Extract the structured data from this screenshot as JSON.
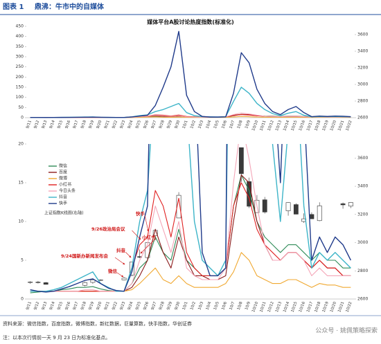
{
  "header": {
    "label": "图表 1",
    "title": "鼎沸：牛市中的自媒体"
  },
  "chart_data": [
    {
      "type": "line",
      "title": "媒体平台A股讨论热度指数(标准化)",
      "categories": [
        "9/11",
        "9/12",
        "9/13",
        "9/14",
        "9/15",
        "9/16",
        "9/17",
        "9/18",
        "9/19",
        "9/20",
        "9/21",
        "9/22",
        "9/23",
        "9/24",
        "9/25",
        "9/26",
        "9/27",
        "9/28",
        "9/29",
        "9/30",
        "10/1",
        "10/2",
        "10/3",
        "10/4",
        "10/5",
        "10/6",
        "10/7",
        "10/8",
        "10/9",
        "10/10",
        "10/11",
        "10/12",
        "10/13",
        "10/14",
        "10/15",
        "10/16",
        "10/17",
        "10/18",
        "10/19",
        "10/20",
        "10/21",
        "10/22"
      ],
      "series": [
        {
          "name": "微信",
          "color": "#2e8b57",
          "values": [
            0.8,
            0.9,
            1,
            1,
            1.2,
            1.3,
            1.5,
            1.5,
            1.6,
            1.3,
            1.1,
            1,
            1,
            2,
            4,
            5,
            8,
            6,
            5,
            9,
            5,
            4,
            3,
            3,
            3,
            4,
            12,
            16,
            14,
            10,
            8,
            7,
            6,
            7,
            7,
            6,
            5,
            6,
            5,
            5,
            4,
            4
          ]
        },
        {
          "name": "百度",
          "color": "#8b1a1a",
          "values": [
            1,
            1,
            1,
            1,
            1,
            1,
            1,
            1,
            1,
            1,
            1,
            1,
            1,
            1.5,
            3,
            5,
            9,
            6,
            4,
            8,
            5,
            3,
            3,
            2.5,
            2.5,
            3,
            10,
            16,
            15,
            10,
            7,
            5,
            5,
            6,
            6,
            5,
            4,
            5,
            4,
            4,
            3,
            3
          ]
        },
        {
          "name": "微博",
          "color": "#f0a830",
          "values": [
            1,
            1,
            1,
            1,
            1,
            1,
            1,
            1,
            1,
            1,
            1,
            1,
            1,
            1.2,
            2,
            3,
            4,
            2.5,
            2,
            3,
            2,
            1.5,
            1.5,
            1.5,
            1.5,
            2,
            3.5,
            6,
            5,
            3,
            2.5,
            2,
            2,
            2.5,
            2.5,
            2,
            1.5,
            2,
            1.8,
            1.8,
            1.5,
            1.5
          ]
        },
        {
          "name": "小红书",
          "color": "#e02020",
          "values": [
            1,
            1,
            1,
            1,
            1,
            1,
            1,
            1,
            1,
            1,
            1,
            1,
            1,
            4,
            7,
            8,
            14,
            12,
            8,
            13,
            6,
            4,
            3,
            3,
            3,
            4,
            12,
            15,
            13,
            9,
            7,
            6,
            5,
            6,
            6,
            5,
            4,
            5,
            4,
            4,
            3,
            3
          ]
        },
        {
          "name": "今日头条",
          "color": "#f4a6b8",
          "values": [
            1,
            1,
            1,
            1,
            1,
            1,
            1,
            1.2,
            1.2,
            1,
            1,
            1,
            1,
            2,
            5,
            7,
            12,
            9,
            6,
            10,
            4,
            3,
            2.5,
            2.5,
            2.5,
            4,
            15,
            23,
            18,
            12,
            7,
            5,
            5,
            6,
            6,
            5,
            3,
            4,
            3,
            3,
            3,
            3
          ]
        },
        {
          "name": "抖音",
          "color": "#3cb4c8",
          "values": [
            1,
            1,
            1,
            1.2,
            1.5,
            2,
            2.5,
            3,
            3.5,
            2,
            1.5,
            1,
            1,
            4,
            10,
            14,
            30,
            40,
            55,
            70,
            25,
            10,
            5,
            4,
            3,
            5,
            80,
            150,
            120,
            70,
            40,
            20,
            10,
            22,
            30,
            12,
            4,
            6,
            5,
            6,
            5,
            4
          ]
        },
        {
          "name": "快手",
          "color": "#1f3a8a",
          "values": [
            1.2,
            1.0,
            0.9,
            1.0,
            1.3,
            1.6,
            2.0,
            2.4,
            2.6,
            2.0,
            1.4,
            1.1,
            1.0,
            3.5,
            8,
            12,
            60,
            150,
            250,
            425,
            110,
            30,
            6,
            3,
            3,
            4,
            120,
            320,
            270,
            140,
            70,
            30,
            15,
            40,
            55,
            25,
            5,
            8,
            6,
            8,
            7,
            5
          ]
        }
      ],
      "ylim": [
        0,
        450
      ],
      "yticks": [
        0,
        50,
        100,
        150,
        200,
        250,
        300,
        350,
        400,
        450
      ],
      "y2lim": [
        2600,
        3700
      ],
      "y2ticks": [
        2600,
        2800,
        3000,
        3200,
        3400,
        3600
      ]
    },
    {
      "type": "line",
      "ylim": [
        0,
        20
      ],
      "yticks": [
        0,
        5,
        10,
        15,
        20
      ],
      "y2lim": [
        2600,
        3700
      ],
      "y2ticks": [
        2600,
        2800,
        3000,
        3200,
        3400,
        3600
      ],
      "legend": "upper left",
      "candles": {
        "name": "上证指数K线图(右轴)",
        "x": [
          "9/11",
          "9/12",
          "9/13",
          "9/18",
          "9/19",
          "9/20",
          "9/23",
          "9/24",
          "9/25",
          "9/26",
          "9/27",
          "9/30",
          "10/8",
          "10/9",
          "10/10",
          "10/11",
          "10/14",
          "10/15",
          "10/16",
          "10/17",
          "10/18",
          "10/21",
          "10/22"
        ],
        "open": [
          2720,
          2720,
          2716,
          2697,
          2718,
          2733,
          2736,
          2770,
          2901,
          2894,
          3049,
          3175,
          3674,
          3433,
          3213,
          3304,
          3226,
          3270,
          3150,
          3200,
          3156,
          3276,
          3259
        ],
        "high": [
          2727,
          2728,
          2721,
          2724,
          2746,
          2740,
          2756,
          2864,
          2952,
          3000,
          3088,
          3358,
          3674,
          3461,
          3338,
          3324,
          3286,
          3279,
          3208,
          3215,
          3286,
          3285,
          3286
        ],
        "low": [
          2708,
          2710,
          2703,
          2689,
          2708,
          2728,
          2733,
          2761,
          2889,
          2880,
          3017,
          3174,
          3431,
          3245,
          3212,
          3206,
          3191,
          3201,
          3140,
          3169,
          3152,
          3241,
          3245
        ],
        "close": [
          2721,
          2717,
          2704,
          2717,
          2736,
          2736,
          2748,
          2863,
          2896,
          3000,
          3087,
          3336,
          3489,
          3258,
          3301,
          3217,
          3284,
          3202,
          3169,
          3169,
          3261,
          3268,
          3285
        ]
      },
      "annotations": [
        "快手",
        "9/26政治局会议",
        "小红书",
        "抖音",
        "9/24国新办新闻发布会",
        "微信"
      ]
    }
  ],
  "footer": {
    "source": "资料来源：微信指数，百度指数，微博指数，新红数据，巨量算数，快手指数，华创证券",
    "note": "注：以本次行情前一天 9 月 23 日为标准化基点。",
    "watermark": "公众号 · 姚佩策略探索"
  }
}
